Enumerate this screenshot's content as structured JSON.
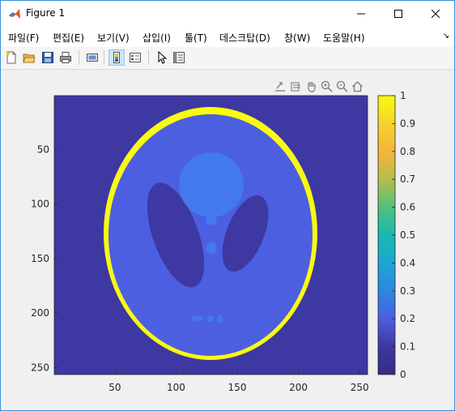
{
  "window": {
    "title": "Figure 1"
  },
  "menu": {
    "items": [
      {
        "label": "파일(F)"
      },
      {
        "label": "편집(E)"
      },
      {
        "label": "보기(V)"
      },
      {
        "label": "삽입(I)"
      },
      {
        "label": "툴(T)"
      },
      {
        "label": "데스크탑(D)"
      },
      {
        "label": "창(W)"
      },
      {
        "label": "도움말(H)"
      }
    ],
    "overflow_icon": "arrow-icon"
  },
  "toolbar": {
    "buttons": [
      "new-figure-icon",
      "open-file-icon",
      "save-icon",
      "print-icon",
      "link-plot-icon",
      "colorbar-icon",
      "legend-icon",
      "pointer-icon",
      "property-inspector-icon"
    ]
  },
  "axes_toolbar": {
    "buttons": [
      "export-icon",
      "brush-icon",
      "pan-icon",
      "zoom-in-icon",
      "zoom-out-icon",
      "home-icon"
    ]
  },
  "chart_data": {
    "type": "heatmap",
    "title": "",
    "xlabel": "",
    "ylabel": "",
    "xlim": [
      1,
      256
    ],
    "ylim": [
      1,
      256
    ],
    "y_direction": "reverse",
    "xticks": [
      50,
      100,
      150,
      200,
      250
    ],
    "yticks": [
      50,
      100,
      150,
      200,
      250
    ],
    "colormap": "parula",
    "clim": [
      0,
      1
    ],
    "colorbar": {
      "ticks": [
        0,
        0.1,
        0.2,
        0.3,
        0.4,
        0.5,
        0.6,
        0.7,
        0.8,
        0.9,
        1
      ],
      "tick_labels": [
        "0",
        "0.1",
        "0.2",
        "0.3",
        "0.4",
        "0.5",
        "0.6",
        "0.7",
        "0.8",
        "0.9",
        "1"
      ],
      "colors": [
        "#352a87",
        "#3d38a2",
        "#4c5fe1",
        "#2d87e1",
        "#1ca7d3",
        "#17b9b1",
        "#52c07c",
        "#b4bd4d",
        "#f5b53a",
        "#f6d32c",
        "#f9fb0e"
      ]
    },
    "image": "Shepp-Logan phantom",
    "regions": [
      {
        "name": "background",
        "value": 0.0
      },
      {
        "name": "outer skull ellipse",
        "value": 1.0
      },
      {
        "name": "brain ellipse",
        "value": 0.2
      },
      {
        "name": "right dark ellipse",
        "value": 0.0
      },
      {
        "name": "left dark ellipse",
        "value": 0.0
      },
      {
        "name": "top central circle",
        "value": 0.3
      },
      {
        "name": "small circles",
        "value": 0.3
      },
      {
        "name": "bottom small ellipses",
        "value": 0.3
      }
    ]
  }
}
